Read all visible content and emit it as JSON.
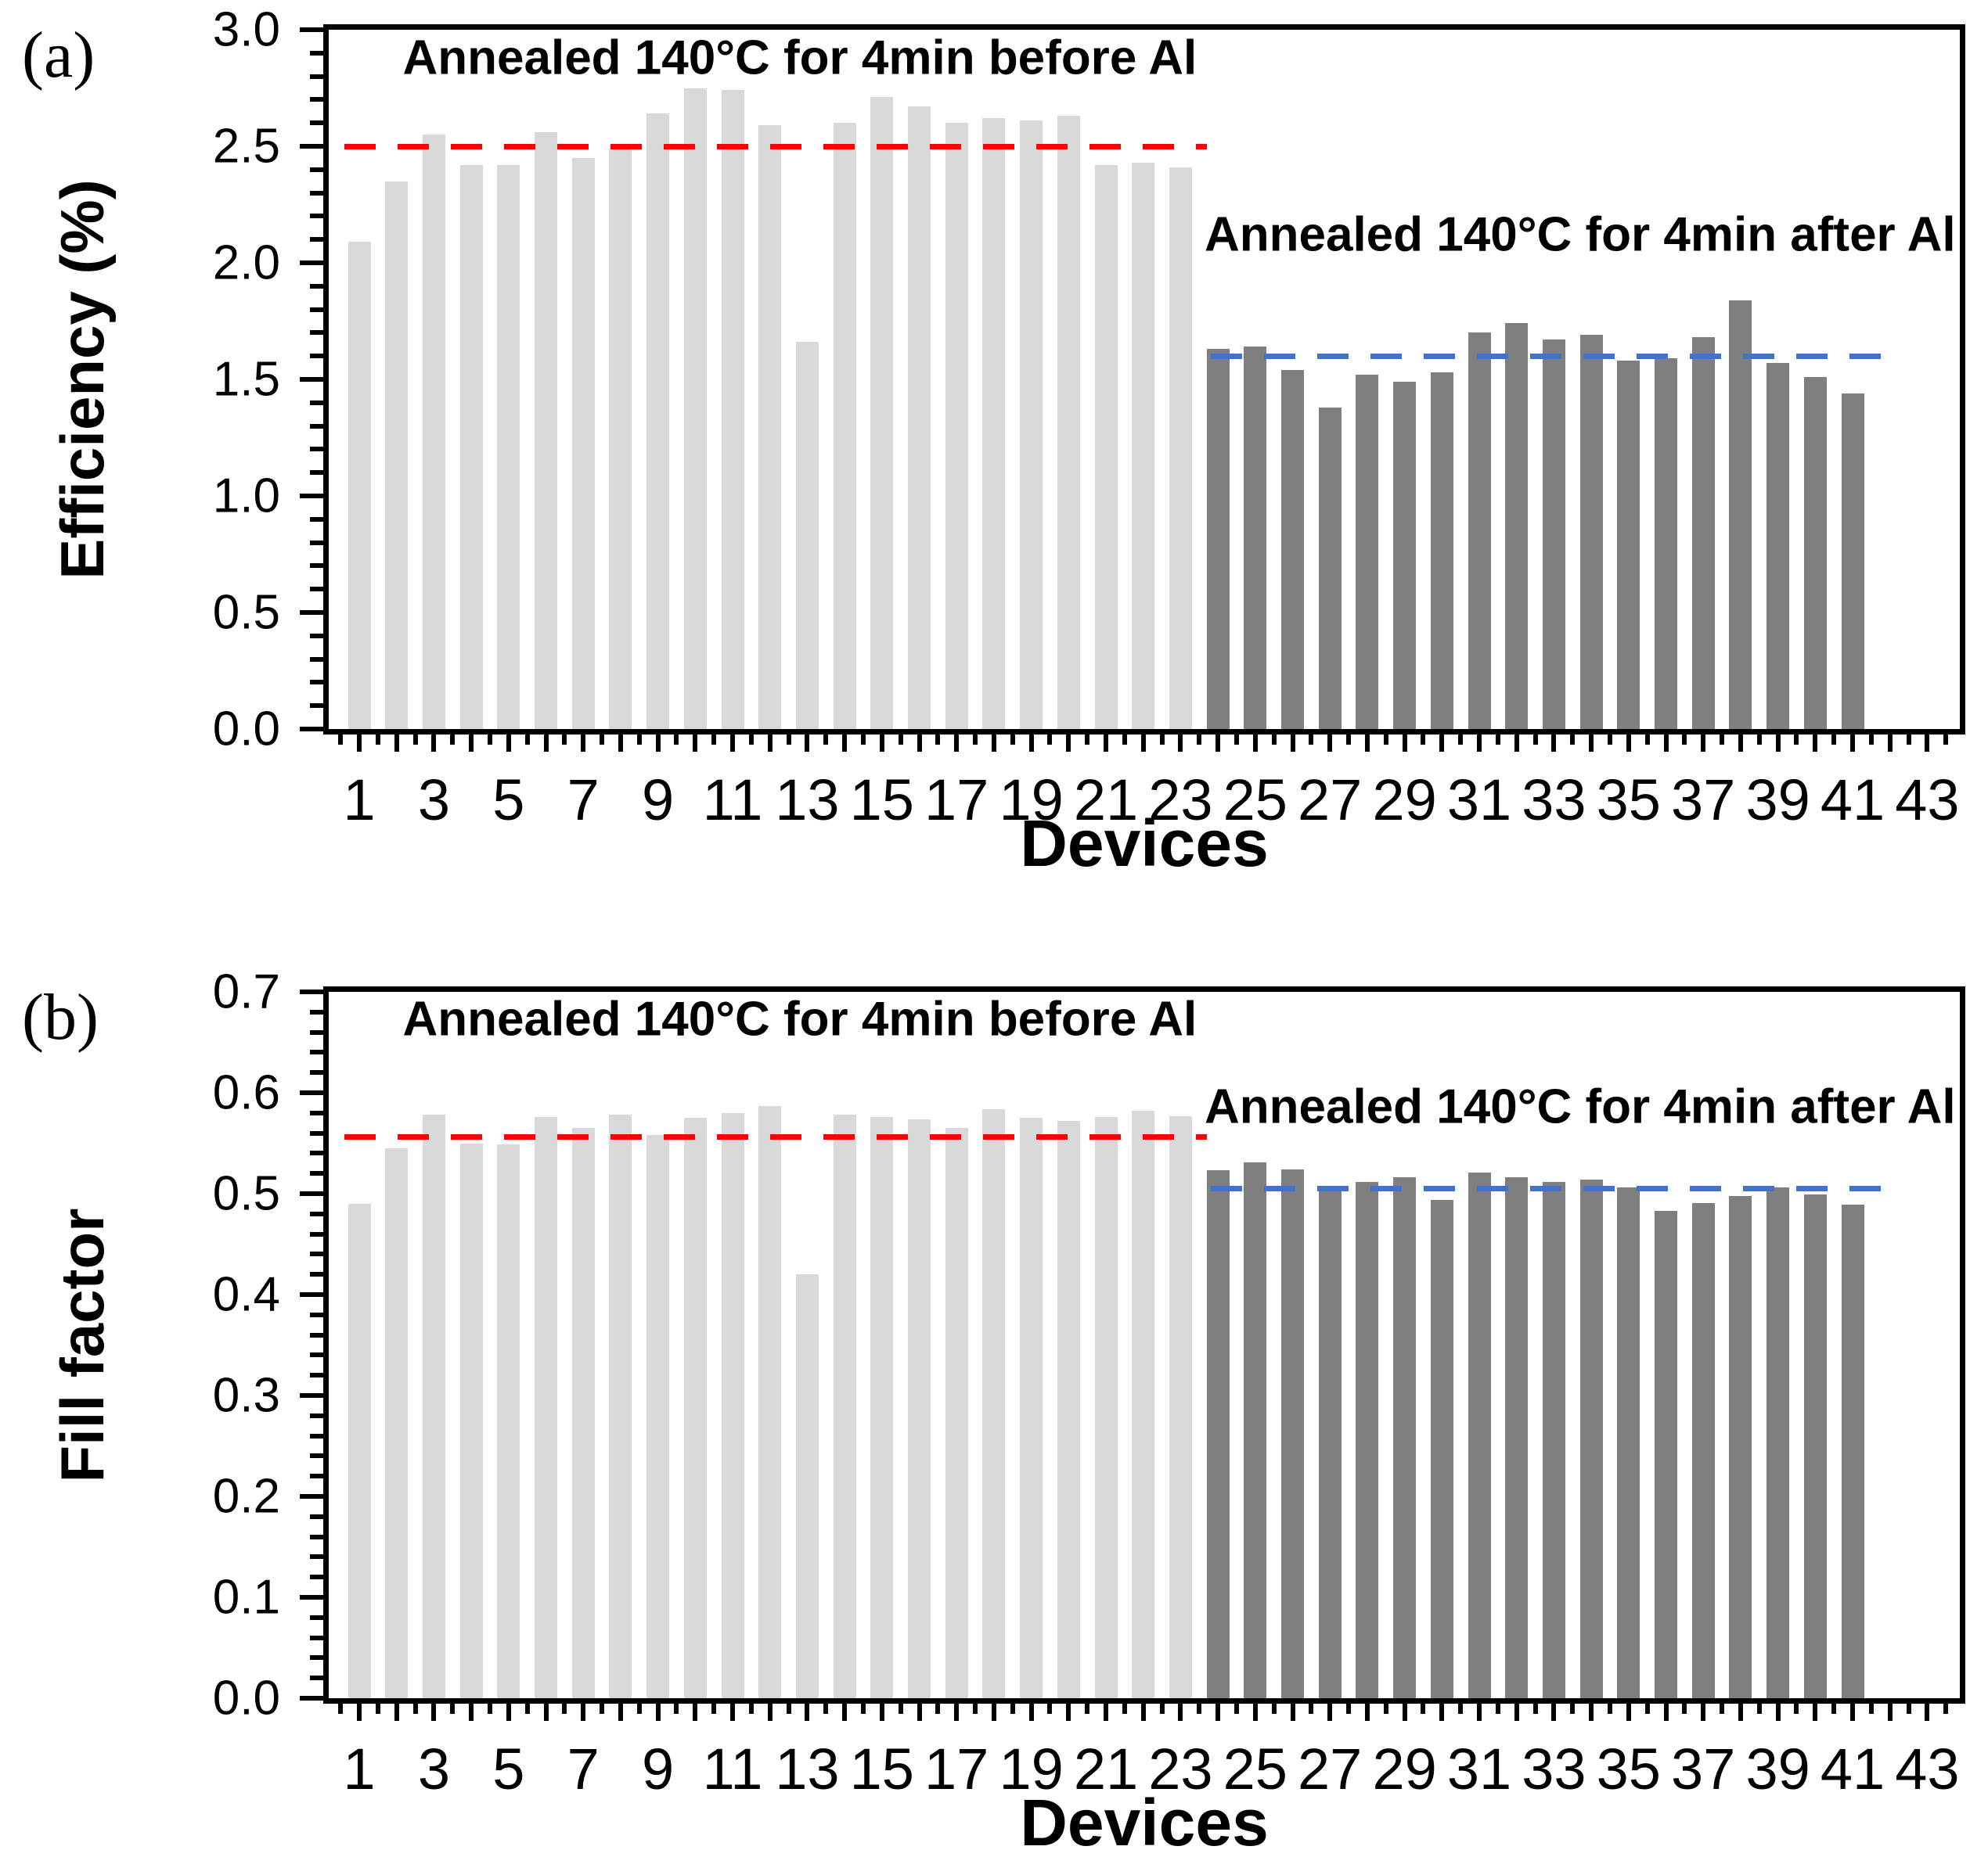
{
  "figure": {
    "panel_tags": [
      "(a)",
      "(b)"
    ]
  },
  "chart_data": [
    {
      "type": "bar",
      "title": "",
      "ylabel": "Efficiency (%)",
      "xlabel": "Devices",
      "ylim": [
        0,
        3.0
      ],
      "ytick_labels": [
        "0.0",
        "0.5",
        "1.0",
        "1.5",
        "2.0",
        "2.5",
        "3.0"
      ],
      "ytick_major_step": 0.5,
      "ytick_minor_step": 0.1,
      "xtick_labels": [
        1,
        3,
        5,
        7,
        9,
        11,
        13,
        15,
        17,
        19,
        21,
        23,
        25,
        27,
        29,
        31,
        33,
        35,
        37,
        39,
        41,
        43
      ],
      "x_range": [
        1,
        43
      ],
      "grid": false,
      "legend": "none",
      "series": [
        {
          "name": "Annealed 140°C for 4min before Al",
          "color": "#d9d9d9",
          "first_device": 1,
          "values": [
            2.09,
            2.35,
            2.55,
            2.42,
            2.42,
            2.56,
            2.45,
            2.49,
            2.64,
            2.75,
            2.74,
            2.59,
            1.66,
            2.6,
            2.71,
            2.67,
            2.6,
            2.62,
            2.61,
            2.63,
            2.42,
            2.43,
            2.41
          ]
        },
        {
          "name": "Annealed 140°C for 4min after Al",
          "color": "#7f7f7f",
          "first_device": 24,
          "values": [
            1.63,
            1.64,
            1.54,
            1.38,
            1.52,
            1.49,
            1.53,
            1.7,
            1.74,
            1.67,
            1.69,
            1.58,
            1.59,
            1.68,
            1.84,
            1.57,
            1.51,
            1.44
          ]
        }
      ],
      "ref_lines": [
        {
          "name": "before-Al-reference",
          "value": 2.5,
          "color": "#ff0000",
          "span_devices": [
            0.6,
            23.7
          ]
        },
        {
          "name": "after-Al-reference",
          "value": 1.6,
          "color": "#4472c4",
          "span_devices": [
            23.8,
            42.2
          ]
        }
      ],
      "annotations": [
        {
          "text": "Annealed 140°C for 4min before Al",
          "at_device": 12.8,
          "at_value": 2.88
        },
        {
          "text": "Annealed 140°C for 4min after Al",
          "at_device": 33.7,
          "at_value": 2.12
        }
      ]
    },
    {
      "type": "bar",
      "title": "",
      "ylabel": "Fill factor",
      "xlabel": "Devices",
      "ylim": [
        0,
        0.7
      ],
      "ytick_labels": [
        "0.0",
        "0.1",
        "0.2",
        "0.3",
        "0.4",
        "0.5",
        "0.6",
        "0.7"
      ],
      "ytick_major_step": 0.1,
      "ytick_minor_step": 0.02,
      "xtick_labels": [
        1,
        3,
        5,
        7,
        9,
        11,
        13,
        15,
        17,
        19,
        21,
        23,
        25,
        27,
        29,
        31,
        33,
        35,
        37,
        39,
        41,
        43
      ],
      "x_range": [
        1,
        43
      ],
      "grid": false,
      "legend": "none",
      "series": [
        {
          "name": "Annealed 140°C for 4min before Al",
          "color": "#d9d9d9",
          "first_device": 1,
          "values": [
            0.49,
            0.545,
            0.578,
            0.55,
            0.549,
            0.576,
            0.565,
            0.578,
            0.558,
            0.575,
            0.58,
            0.587,
            0.42,
            0.578,
            0.576,
            0.574,
            0.565,
            0.584,
            0.575,
            0.572,
            0.576,
            0.582,
            0.577
          ]
        },
        {
          "name": "Annealed 140°C for 4min after Al",
          "color": "#7f7f7f",
          "first_device": 24,
          "values": [
            0.523,
            0.531,
            0.524,
            0.504,
            0.512,
            0.516,
            0.494,
            0.521,
            0.516,
            0.512,
            0.514,
            0.506,
            0.483,
            0.491,
            0.498,
            0.506,
            0.499,
            0.489
          ]
        }
      ],
      "ref_lines": [
        {
          "name": "before-Al-reference",
          "value": 0.556,
          "color": "#ff0000",
          "span_devices": [
            0.6,
            23.7
          ]
        },
        {
          "name": "after-Al-reference",
          "value": 0.505,
          "color": "#4472c4",
          "span_devices": [
            23.8,
            42.2
          ]
        }
      ],
      "annotations": [
        {
          "text": "Annealed 140°C for 4min before Al",
          "at_device": 12.8,
          "at_value": 0.673
        },
        {
          "text": "Annealed 140°C for 4min after Al",
          "at_device": 33.7,
          "at_value": 0.586
        }
      ]
    }
  ]
}
